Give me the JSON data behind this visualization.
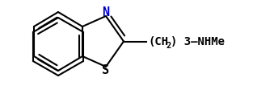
{
  "background_color": "#ffffff",
  "line_color": "#000000",
  "N_color": "#0000cd",
  "S_color": "#000000",
  "figsize": [
    3.39,
    1.17
  ],
  "dpi": 100,
  "lw": 1.5,
  "font_size": 10,
  "font_sub": 7.5,
  "xlim": [
    0.0,
    3.39
  ],
  "ylim": [
    0.0,
    1.17
  ]
}
